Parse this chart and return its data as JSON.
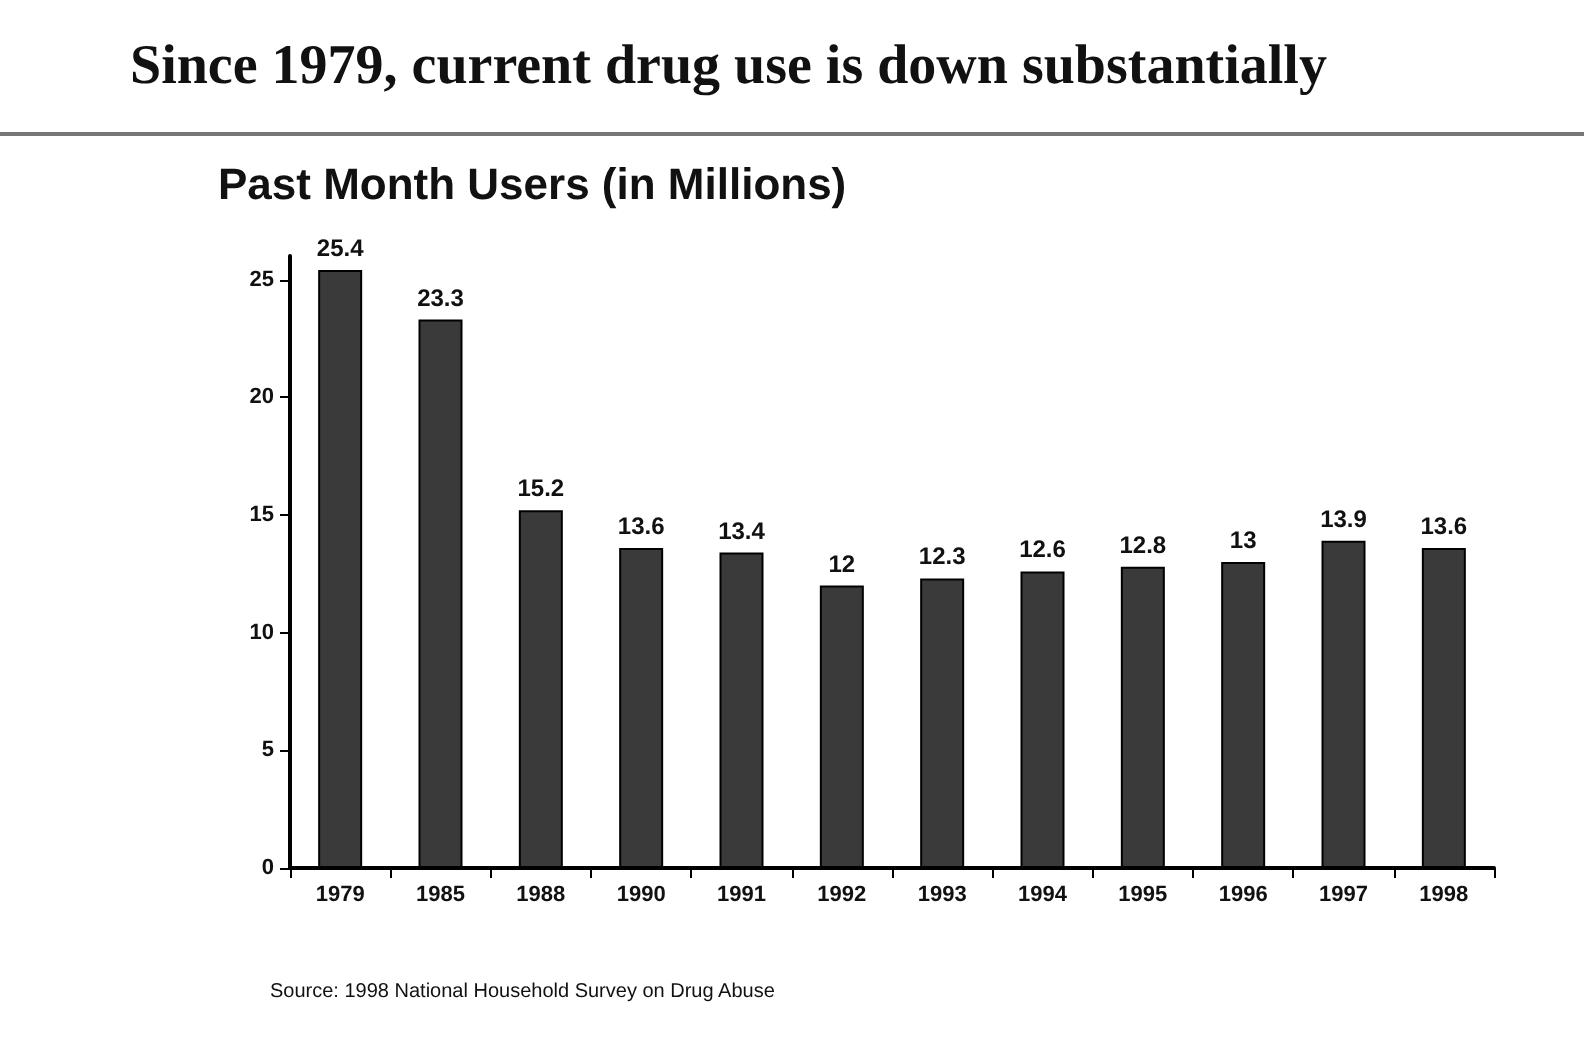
{
  "chart_data": {
    "type": "bar",
    "title": "Since 1979, current drug use is down substantially",
    "subtitle": "Past Month Users (in Millions)",
    "categories": [
      "1979",
      "1985",
      "1988",
      "1990",
      "1991",
      "1992",
      "1993",
      "1994",
      "1995",
      "1996",
      "1997",
      "1998"
    ],
    "values": [
      25.4,
      23.3,
      15.2,
      13.6,
      13.4,
      12,
      12.3,
      12.6,
      12.8,
      13,
      13.9,
      13.6
    ],
    "color": "#3a3a3a",
    "ylim": [
      0,
      26
    ],
    "yticks": [
      0,
      5,
      10,
      15,
      20,
      25
    ],
    "grid": false,
    "data_labels": true,
    "annotations": [
      "Source: 1998 National Household Survey on Drug Abuse"
    ]
  }
}
